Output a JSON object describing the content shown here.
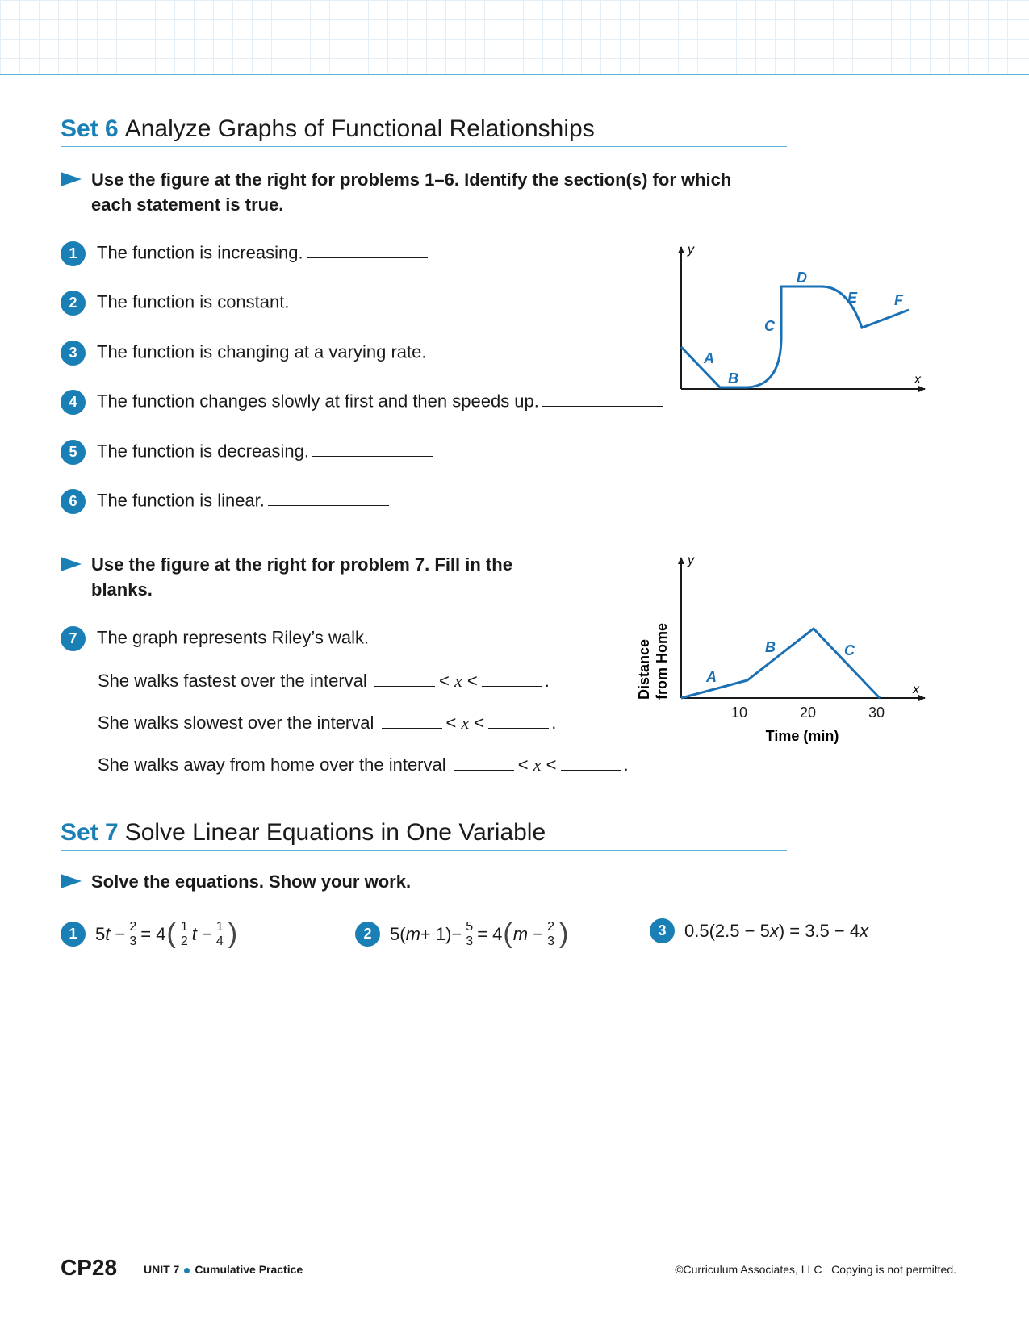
{
  "set6": {
    "label": "Set 6",
    "title": "Analyze Graphs of Functional Relationships",
    "instruction1": "Use the figure at the right for problems 1–6. Identify the section(s) for which each statement is true.",
    "problems": [
      {
        "num": "1",
        "text": "The function is increasing."
      },
      {
        "num": "2",
        "text": "The function is constant."
      },
      {
        "num": "3",
        "text": "The function is changing at a varying rate."
      },
      {
        "num": "4",
        "text": "The function changes slowly at first and then speeds up."
      },
      {
        "num": "5",
        "text": "The function is decreasing."
      },
      {
        "num": "6",
        "text": "The function is linear."
      }
    ],
    "graph1": {
      "x_label": "x",
      "y_label": "y",
      "sections": [
        "A",
        "B",
        "C",
        "D",
        "E",
        "F"
      ]
    },
    "instruction2": "Use the figure at the right for problem 7. Fill in the blanks.",
    "problem7": {
      "num": "7",
      "text": "The graph represents Riley’s walk.",
      "line1": "She walks fastest over the interval",
      "line2": "She walks slowest over the interval",
      "line3": "She walks away from home over the interval",
      "lt": "<",
      "var": "x",
      "period": "."
    },
    "graph2": {
      "x_label": "x",
      "y_label": "y",
      "ylabel_line1": "Distance",
      "ylabel_line2": "from Home",
      "xlabel": "Time (min)",
      "ticks": [
        "10",
        "20",
        "30"
      ],
      "sections": [
        "A",
        "B",
        "C"
      ]
    }
  },
  "set7": {
    "label": "Set 7",
    "title": "Solve Linear Equations in One Variable",
    "instruction": "Solve the equations. Show your work.",
    "eq1": {
      "num": "1",
      "a": "5",
      "t": "t",
      "minus": "−",
      "eqsign": "=",
      "four": "4",
      "f1n": "2",
      "f1d": "3",
      "f2n": "1",
      "f2d": "2",
      "f3n": "1",
      "f3d": "4"
    },
    "eq2": {
      "num": "2",
      "left": "5(",
      "m": "m",
      "plus1": " + 1) ",
      "minus": "−",
      "eqsign": "=",
      "four": "4",
      "f1n": "5",
      "f1d": "3",
      "f2n": "2",
      "f2d": "3"
    },
    "eq3": {
      "num": "3",
      "left": "0.5(2.5 − 5",
      "x": "x",
      "right": ") = 3.5 − 4"
    }
  },
  "footer": {
    "page": "CP28",
    "unit": "UNIT 7",
    "section": "Cumulative Practice",
    "copyright": "©Curriculum Associates, LLC",
    "notice": "Copying is not permitted."
  }
}
